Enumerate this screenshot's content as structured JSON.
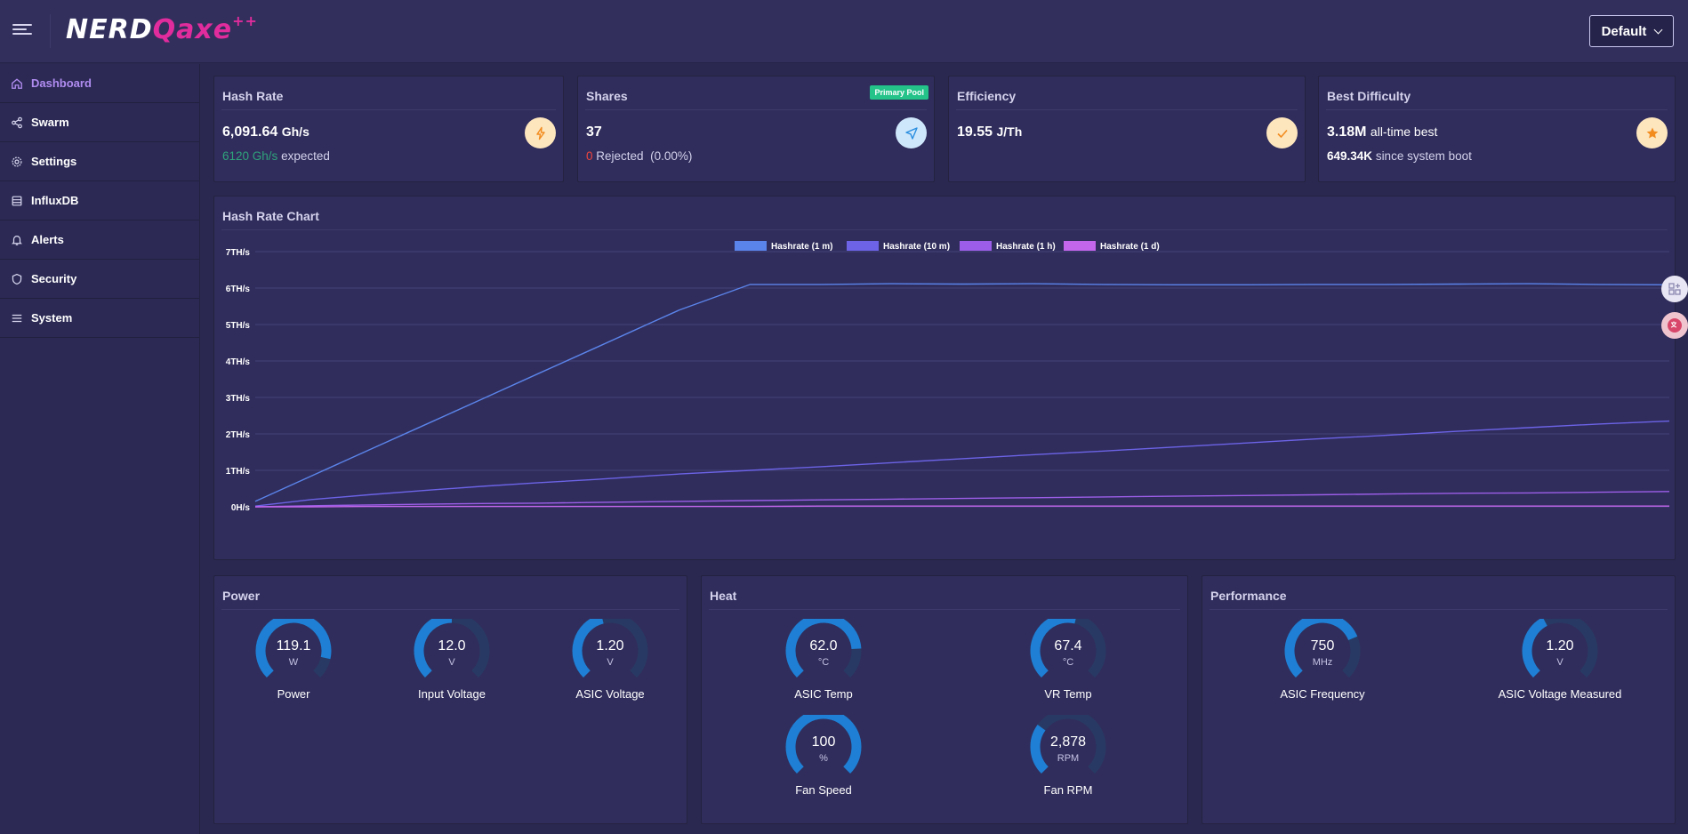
{
  "app": {
    "logo_part1": "NERD",
    "logo_part2": "Qaxe",
    "logo_part3": "++",
    "profile_selected": "Default"
  },
  "sidebar": {
    "items": [
      {
        "label": "Dashboard",
        "icon": "home-icon",
        "active": true
      },
      {
        "label": "Swarm",
        "icon": "share-icon",
        "active": false
      },
      {
        "label": "Settings",
        "icon": "gear-icon",
        "active": false
      },
      {
        "label": "InfluxDB",
        "icon": "database-icon",
        "active": false
      },
      {
        "label": "Alerts",
        "icon": "bell-icon",
        "active": false
      },
      {
        "label": "Security",
        "icon": "shield-icon",
        "active": false
      },
      {
        "label": "System",
        "icon": "list-icon",
        "active": false
      }
    ]
  },
  "stats": {
    "hashrate": {
      "title": "Hash Rate",
      "value": "6,091.64",
      "unit": "Gh/s",
      "expected_value": "6120 Gh/s",
      "expected_label": "expected",
      "icon": "bolt-icon"
    },
    "shares": {
      "title": "Shares",
      "badge": "Primary Pool",
      "value": "37",
      "rejected_count": "0",
      "rejected_label": "Rejected",
      "rejected_pct": "(0.00%)",
      "icon": "send-icon"
    },
    "efficiency": {
      "title": "Efficiency",
      "value": "19.55",
      "unit": "J/Th",
      "icon": "check-icon"
    },
    "best_difficulty": {
      "title": "Best Difficulty",
      "value": "3.18M",
      "value_label": "all-time best",
      "since_boot_value": "649.34K",
      "since_boot_label": "since system boot",
      "icon": "star-icon"
    }
  },
  "chart": {
    "title": "Hash Rate Chart"
  },
  "chart_data": {
    "type": "line",
    "title": "",
    "ylabel": "",
    "xlabel": "",
    "y_tick_labels": [
      "0H/s",
      "1TH/s",
      "2TH/s",
      "3TH/s",
      "4TH/s",
      "5TH/s",
      "6TH/s",
      "7TH/s"
    ],
    "ylim": [
      0,
      7
    ],
    "y_unit": "TH/s",
    "x": [
      0,
      0.04,
      0.08,
      0.12,
      0.16,
      0.2,
      0.24,
      0.26,
      0.28,
      0.3,
      0.35,
      0.4,
      0.45,
      0.5,
      0.55,
      0.6,
      0.65,
      0.7,
      0.75,
      0.8,
      0.85,
      0.9,
      0.95,
      1.0
    ],
    "series": [
      {
        "name": "Hashrate (1 m)",
        "color": "#5b84ea",
        "values": [
          0.15,
          0.85,
          1.55,
          2.25,
          2.95,
          3.65,
          4.35,
          4.7,
          5.05,
          5.4,
          6.1,
          6.1,
          6.12,
          6.11,
          6.12,
          6.1,
          6.09,
          6.09,
          6.1,
          6.1,
          6.11,
          6.12,
          6.1,
          6.09
        ]
      },
      {
        "name": "Hashrate (10 m)",
        "color": "#6c63e6",
        "values": [
          0.02,
          0.2,
          0.33,
          0.45,
          0.56,
          0.66,
          0.75,
          0.8,
          0.85,
          0.9,
          1.0,
          1.1,
          1.21,
          1.32,
          1.43,
          1.53,
          1.64,
          1.75,
          1.86,
          1.96,
          2.07,
          2.17,
          2.27,
          2.35
        ]
      },
      {
        "name": "Hashrate (1 h)",
        "color": "#9c5ee8",
        "values": [
          0.0,
          0.03,
          0.05,
          0.07,
          0.09,
          0.1,
          0.12,
          0.13,
          0.14,
          0.15,
          0.17,
          0.19,
          0.21,
          0.23,
          0.25,
          0.27,
          0.29,
          0.31,
          0.33,
          0.35,
          0.37,
          0.38,
          0.4,
          0.42
        ]
      },
      {
        "name": "Hashrate (1 d)",
        "color": "#c466ec",
        "values": [
          0.0,
          0.0,
          0.01,
          0.01,
          0.01,
          0.01,
          0.01,
          0.01,
          0.01,
          0.01,
          0.01,
          0.02,
          0.02,
          0.02,
          0.02,
          0.02,
          0.02,
          0.02,
          0.02,
          0.02,
          0.02,
          0.02,
          0.02,
          0.02
        ]
      }
    ],
    "legend_position": "top-center",
    "grid": true
  },
  "power": {
    "title": "Power",
    "gauges": [
      {
        "name": "power-gauge",
        "value": "119.1",
        "unit": "W",
        "label": "Power",
        "fraction": 0.88
      },
      {
        "name": "input-voltage-gauge",
        "value": "12.0",
        "unit": "V",
        "label": "Input Voltage",
        "fraction": 0.5
      },
      {
        "name": "asic-voltage-gauge",
        "value": "1.20",
        "unit": "V",
        "label": "ASIC Voltage",
        "fraction": 0.45
      }
    ]
  },
  "heat": {
    "title": "Heat",
    "gauges": [
      {
        "name": "asic-temp-gauge",
        "value": "62.0",
        "unit": "°C",
        "label": "ASIC Temp",
        "fraction": 0.82
      },
      {
        "name": "vr-temp-gauge",
        "value": "67.4",
        "unit": "°C",
        "label": "VR Temp",
        "fraction": 0.55
      },
      {
        "name": "fan-speed-gauge",
        "value": "100",
        "unit": "%",
        "label": "Fan Speed",
        "fraction": 1.0
      },
      {
        "name": "fan-rpm-gauge",
        "value": "2,878",
        "unit": "RPM",
        "label": "Fan RPM",
        "fraction": 0.3
      }
    ]
  },
  "performance": {
    "title": "Performance",
    "gauges": [
      {
        "name": "asic-frequency-gauge",
        "value": "750",
        "unit": "MHz",
        "label": "ASIC Frequency",
        "fraction": 0.75
      },
      {
        "name": "asic-voltage-measured-gauge",
        "value": "1.20",
        "unit": "V",
        "label": "ASIC Voltage Measured",
        "fraction": 0.4
      }
    ]
  },
  "colors": {
    "accent": "#b08cf0",
    "gauge_fill": "#1f7fd4",
    "gauge_track": "#283a63"
  }
}
